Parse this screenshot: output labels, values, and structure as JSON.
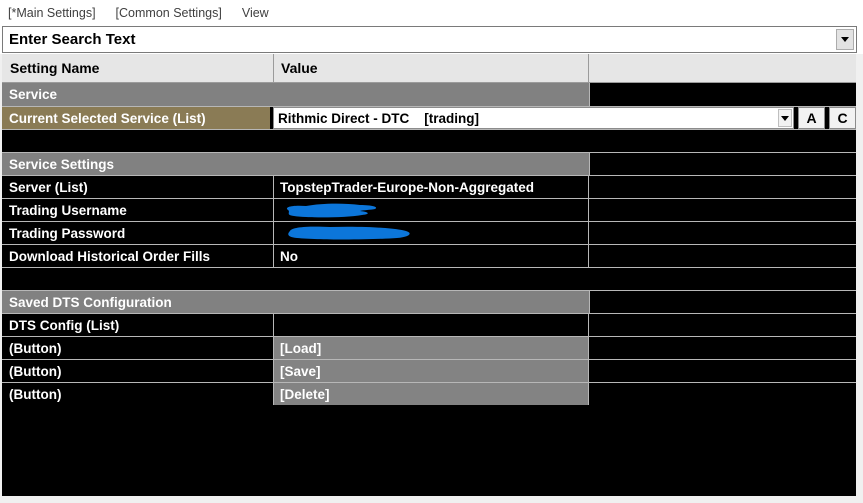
{
  "menu": {
    "items": [
      {
        "label": "[*Main Settings]"
      },
      {
        "label": "[Common Settings]"
      },
      {
        "label": "View"
      }
    ]
  },
  "search": {
    "value": "Enter Search Text"
  },
  "table_header": {
    "name": "Setting Name",
    "value": "Value"
  },
  "rows": [
    {
      "type": "section",
      "label": "Service"
    },
    {
      "type": "service_combo",
      "label": "Current Selected Service (List)",
      "value": "Rithmic Direct - DTC    [trading]",
      "aux_buttons": [
        "A",
        "C"
      ]
    },
    {
      "type": "spacer"
    },
    {
      "type": "section",
      "label": "Service Settings"
    },
    {
      "type": "setting",
      "label": "Server (List)",
      "value": "TopstepTrader-Europe-Non-Aggregated"
    },
    {
      "type": "setting",
      "label": "Trading Username",
      "value": "",
      "redacted": true
    },
    {
      "type": "setting",
      "label": "Trading Password",
      "value": "",
      "redacted": true
    },
    {
      "type": "setting",
      "label": "Download Historical Order Fills",
      "value": "No"
    },
    {
      "type": "spacer"
    },
    {
      "type": "section",
      "label": "Saved DTS Configuration"
    },
    {
      "type": "setting",
      "label": "DTS Config (List)",
      "value": ""
    },
    {
      "type": "button",
      "label": "(Button)",
      "value": "[Load]"
    },
    {
      "type": "button",
      "label": "(Button)",
      "value": "[Save]"
    },
    {
      "type": "button",
      "label": "(Button)",
      "value": "[Delete]"
    }
  ],
  "colors": {
    "accent_tan": "#8a7b55",
    "section_gray": "#818181",
    "button_gray": "#838383",
    "redaction_blue": "#0c76da",
    "header_bg": "#e6e6e6"
  }
}
